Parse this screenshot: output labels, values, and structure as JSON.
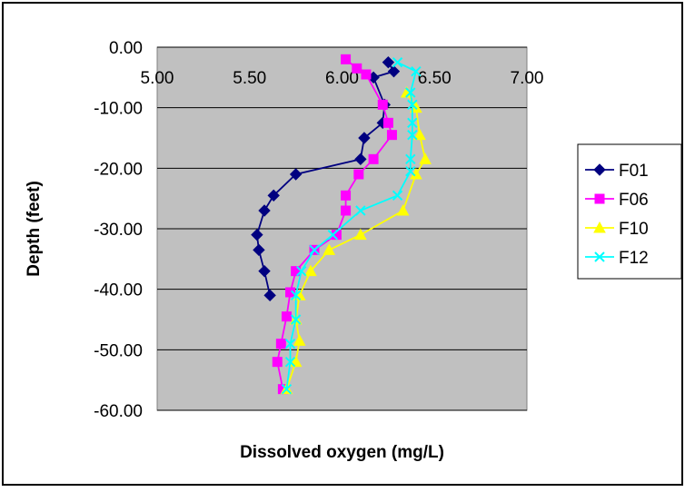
{
  "chart_data": {
    "type": "line",
    "title": "",
    "xlabel": "Dissolved oxygen (mg/L)",
    "ylabel": "Depth (feet)",
    "xlim": [
      5.0,
      7.0
    ],
    "ylim": [
      -60.0,
      0.0
    ],
    "x_ticks": [
      "5.00",
      "5.50",
      "6.00",
      "6.50",
      "7.00"
    ],
    "y_ticks": [
      "0.00",
      "-10.00",
      "-20.00",
      "-30.00",
      "-40.00",
      "-50.00",
      "-60.00"
    ],
    "x_tick_values": [
      5.0,
      5.5,
      6.0,
      6.5,
      7.0
    ],
    "y_tick_values": [
      0,
      -10,
      -20,
      -30,
      -40,
      -50,
      -60
    ],
    "grid": "horizontal",
    "plot_background": "#c0c0c0",
    "legend_position": "right",
    "series": [
      {
        "name": "F01",
        "color": "#000080",
        "marker": "diamond",
        "x": [
          6.25,
          6.28,
          6.17,
          6.23,
          6.22,
          6.12,
          6.1,
          5.75,
          5.63,
          5.58,
          5.54,
          5.55,
          5.58,
          5.61
        ],
        "y": [
          -2.5,
          -4.0,
          -5.0,
          -9.5,
          -12.5,
          -15.0,
          -18.5,
          -21.0,
          -24.5,
          -27.0,
          -31.0,
          -33.5,
          -37.0,
          -41.0
        ]
      },
      {
        "name": "F06",
        "color": "#ff00ff",
        "marker": "square",
        "x": [
          6.02,
          6.08,
          6.13,
          6.22,
          6.25,
          6.27,
          6.17,
          6.09,
          6.02,
          6.02,
          5.97,
          5.85,
          5.75,
          5.72,
          5.7,
          5.67,
          5.65,
          5.68
        ],
        "y": [
          -2.0,
          -3.5,
          -4.5,
          -9.5,
          -12.5,
          -14.5,
          -18.5,
          -21.0,
          -24.5,
          -27.0,
          -31.0,
          -33.5,
          -37.0,
          -40.5,
          -44.5,
          -49.0,
          -52.0,
          -56.5
        ]
      },
      {
        "name": "F10",
        "color": "#ffff00",
        "marker": "triangle",
        "x": [
          6.35,
          6.4,
          6.42,
          6.45,
          6.4,
          6.33,
          6.1,
          5.93,
          5.83,
          5.77,
          5.75,
          5.77,
          5.75,
          5.7
        ],
        "y": [
          -7.5,
          -10.0,
          -14.5,
          -18.5,
          -21.0,
          -27.0,
          -31.0,
          -33.5,
          -37.0,
          -41.0,
          -45.0,
          -48.5,
          -52.0,
          -56.5
        ]
      },
      {
        "name": "F12",
        "color": "#00ffff",
        "marker": "x",
        "x": [
          6.3,
          6.4,
          6.37,
          6.38,
          6.38,
          6.38,
          6.37,
          6.37,
          6.3,
          6.1,
          5.95,
          5.85,
          5.78,
          5.75,
          5.75,
          5.72,
          5.72,
          5.7
        ],
        "y": [
          -2.5,
          -4.0,
          -7.5,
          -9.5,
          -12.5,
          -14.5,
          -18.5,
          -20.5,
          -24.5,
          -27.0,
          -31.0,
          -33.5,
          -37.0,
          -41.0,
          -45.0,
          -49.0,
          -52.0,
          -56.5
        ]
      }
    ]
  }
}
